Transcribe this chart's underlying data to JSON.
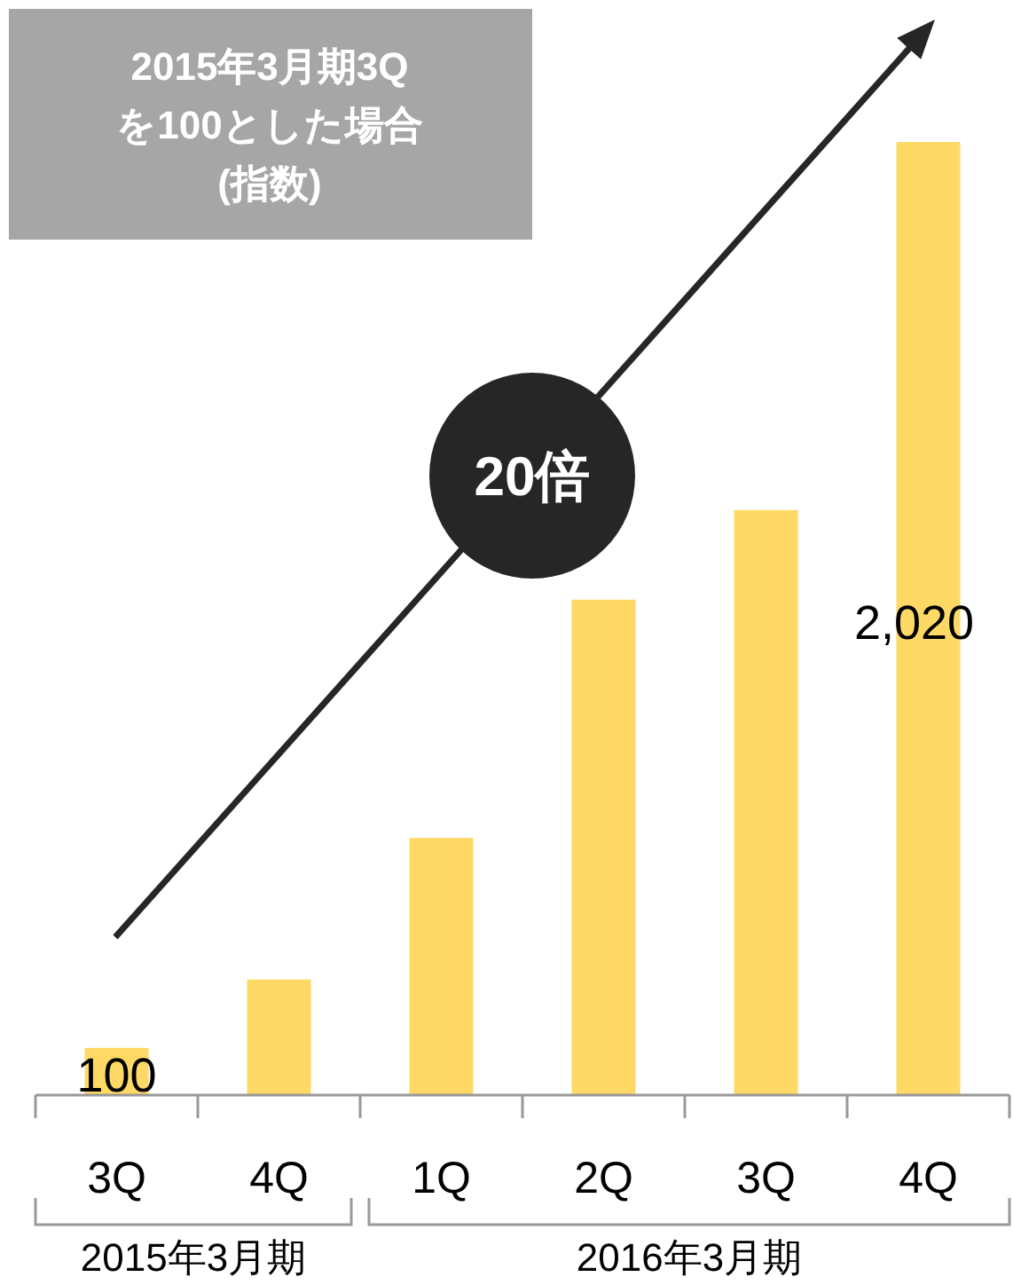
{
  "chart_data": {
    "type": "bar",
    "title": "2015年3月期3Q\nを100とした場合\n(指数)",
    "categories": [
      "3Q",
      "4Q",
      "1Q",
      "2Q",
      "3Q",
      "4Q"
    ],
    "values": [
      100,
      245,
      545,
      1050,
      1240,
      2020
    ],
    "value_labels": [
      "100",
      null,
      null,
      null,
      null,
      "2,020"
    ],
    "color": "#ffd966",
    "annotations": [
      "20倍",
      "2015年3月期",
      "2016年3月期"
    ]
  }
}
